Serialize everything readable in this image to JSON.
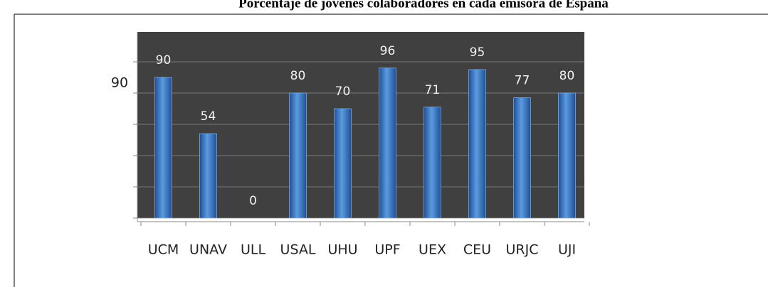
{
  "chart_data": {
    "type": "bar",
    "title": "Porcentaje de jóvenes colaboradores en cada emisora de España",
    "categories": [
      "UCM",
      "UNAV",
      "ULL",
      "USAL",
      "UHU",
      "UPF",
      "UEX",
      "CEU",
      "URJC",
      "UJI"
    ],
    "values": [
      90,
      54,
      0,
      80,
      70,
      96,
      71,
      95,
      77,
      80
    ],
    "color": "#3a78c8",
    "ylim": [
      0,
      100
    ],
    "yticks": [
      0,
      20,
      40,
      60,
      80,
      100
    ],
    "grid": true,
    "annotations": [
      "90"
    ]
  }
}
